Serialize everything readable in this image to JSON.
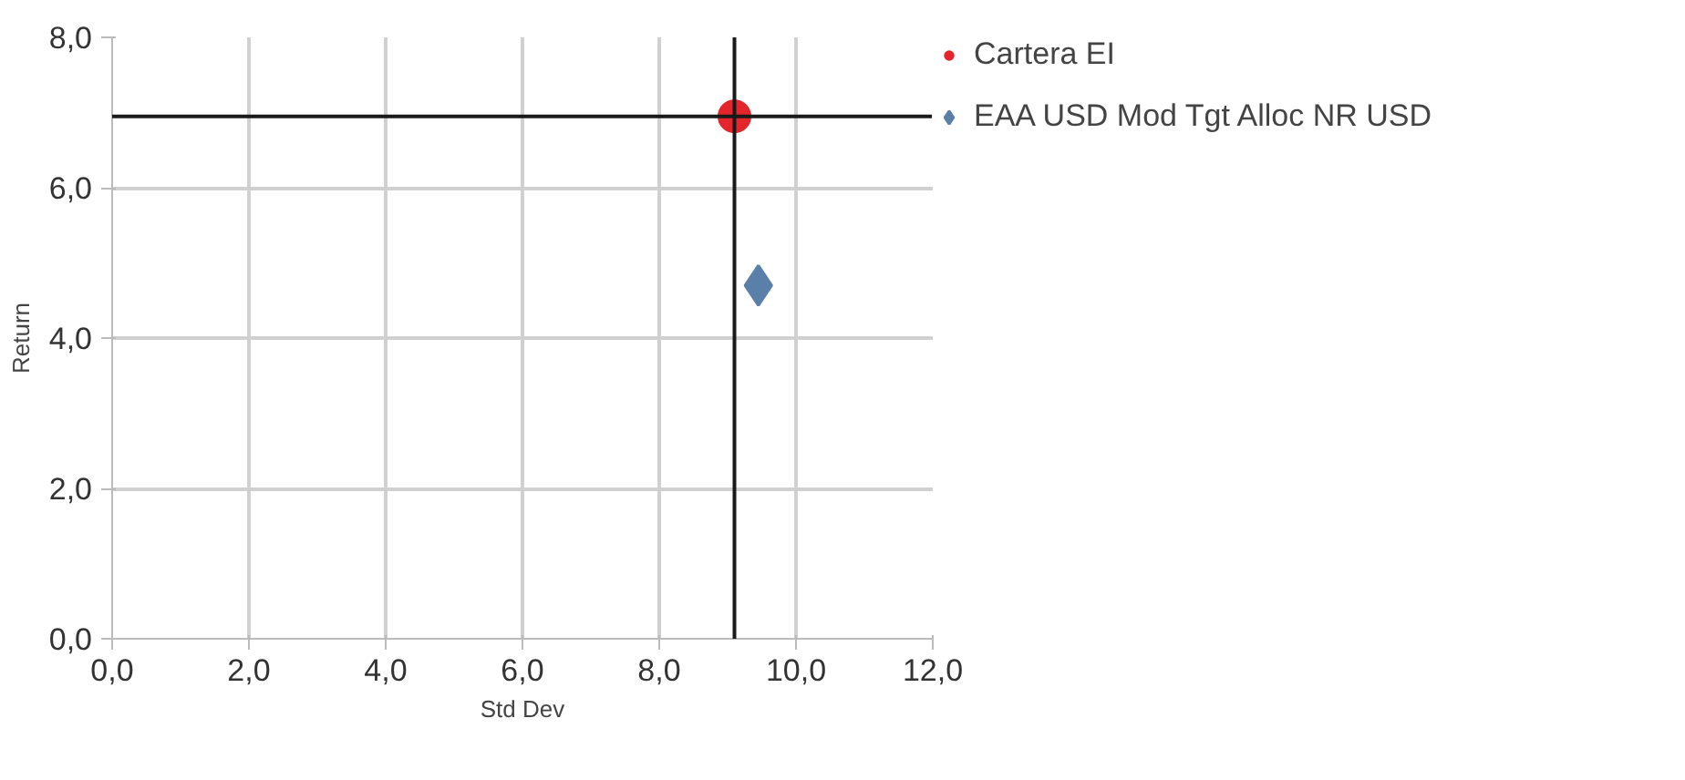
{
  "chart_data": {
    "type": "scatter",
    "xlabel": "Std Dev",
    "ylabel": "Return",
    "xlim": [
      0,
      12
    ],
    "ylim": [
      0,
      8
    ],
    "xticks": [
      {
        "value": 0,
        "label": "0,0"
      },
      {
        "value": 2,
        "label": "2,0"
      },
      {
        "value": 4,
        "label": "4,0"
      },
      {
        "value": 6,
        "label": "6,0"
      },
      {
        "value": 8,
        "label": "8,0"
      },
      {
        "value": 10,
        "label": "10,0"
      },
      {
        "value": 12,
        "label": "12,0"
      }
    ],
    "yticks": [
      {
        "value": 0,
        "label": "0,0"
      },
      {
        "value": 2,
        "label": "2,0"
      },
      {
        "value": 4,
        "label": "4,0"
      },
      {
        "value": 6,
        "label": "6,0"
      },
      {
        "value": 8,
        "label": "8,0"
      }
    ],
    "series": [
      {
        "name": "Cartera EI",
        "color": "#e3262b",
        "marker": "circle",
        "x": [
          9.1
        ],
        "values": [
          6.95
        ]
      },
      {
        "name": "EAA USD Mod Tgt Alloc NR USD",
        "color": "#5a7fa8",
        "marker": "diamond",
        "x": [
          9.45
        ],
        "values": [
          4.7
        ]
      }
    ],
    "ref_lines": [
      {
        "axis": "x",
        "value": 9.1,
        "color": "#1a1a1a"
      },
      {
        "axis": "y",
        "value": 6.95,
        "color": "#1a1a1a"
      }
    ],
    "grid": true,
    "legend": "top right"
  }
}
